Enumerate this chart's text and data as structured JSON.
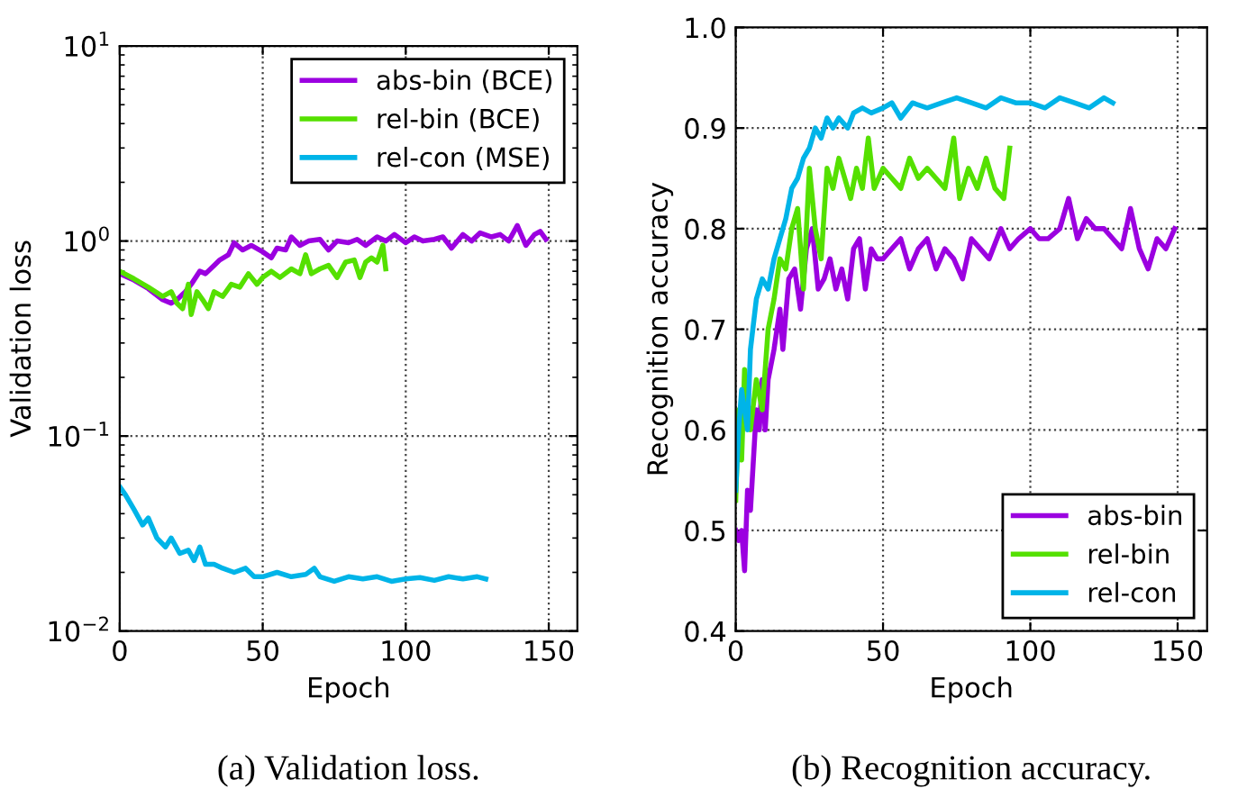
{
  "chart_data": [
    {
      "type": "line",
      "xlabel": "Epoch",
      "ylabel": "Validation loss",
      "log": "y",
      "xlim": [
        0,
        160
      ],
      "xticks": [
        0,
        50,
        100,
        150
      ],
      "ylim": [
        0.01,
        10
      ],
      "yticks": [
        {
          "value": 0.01,
          "label": "10$^{−2}$"
        },
        {
          "value": 0.1,
          "label": "10$^{−1}$"
        },
        {
          "value": 1,
          "label": "10$^{0}$"
        },
        {
          "value": 10,
          "label": "10$^{1}$"
        }
      ],
      "grid": true,
      "legend": "top right",
      "annotations": [
        "(a) Validation loss."
      ],
      "series": [
        {
          "name": "abs-bin (BCE)",
          "color": "#9b00e0",
          "x": [
            0,
            5,
            10,
            15,
            18,
            20,
            23,
            25,
            28,
            30,
            33,
            35,
            38,
            40,
            43,
            46,
            50,
            53,
            55,
            58,
            60,
            63,
            66,
            70,
            73,
            76,
            80,
            83,
            86,
            90,
            93,
            96,
            100,
            103,
            106,
            110,
            113,
            116,
            120,
            123,
            126,
            130,
            133,
            136,
            139,
            142,
            145,
            147,
            149
          ],
          "values": [
            0.68,
            0.63,
            0.57,
            0.5,
            0.48,
            0.5,
            0.55,
            0.6,
            0.7,
            0.68,
            0.75,
            0.8,
            0.85,
            0.98,
            0.9,
            0.95,
            0.88,
            0.82,
            0.92,
            0.9,
            1.05,
            0.95,
            1.0,
            1.02,
            0.9,
            1.0,
            0.98,
            1.02,
            0.95,
            1.05,
            1.0,
            1.08,
            0.98,
            1.05,
            1.0,
            1.02,
            1.05,
            0.92,
            1.08,
            1.0,
            1.1,
            1.05,
            1.08,
            1.0,
            1.2,
            0.95,
            1.08,
            1.12,
            1.02
          ]
        },
        {
          "name": "rel-bin (BCE)",
          "color": "#55e000",
          "x": [
            0,
            5,
            10,
            15,
            18,
            20,
            22,
            24,
            25,
            27,
            29,
            31,
            33,
            36,
            39,
            42,
            45,
            48,
            50,
            53,
            56,
            60,
            63,
            65,
            67,
            70,
            73,
            76,
            79,
            82,
            84,
            86,
            88,
            90,
            92,
            93
          ],
          "values": [
            0.7,
            0.64,
            0.58,
            0.52,
            0.55,
            0.48,
            0.45,
            0.6,
            0.42,
            0.55,
            0.5,
            0.45,
            0.55,
            0.52,
            0.6,
            0.58,
            0.68,
            0.6,
            0.65,
            0.7,
            0.65,
            0.72,
            0.68,
            0.85,
            0.68,
            0.72,
            0.75,
            0.65,
            0.78,
            0.8,
            0.65,
            0.78,
            0.82,
            0.78,
            0.95,
            0.72
          ]
        },
        {
          "name": "rel-con (MSE)",
          "color": "#00b4e8",
          "x": [
            0,
            2,
            5,
            8,
            10,
            13,
            16,
            18,
            21,
            24,
            26,
            28,
            30,
            33,
            36,
            40,
            44,
            47,
            50,
            55,
            60,
            65,
            68,
            70,
            75,
            80,
            85,
            90,
            95,
            100,
            105,
            110,
            115,
            120,
            125,
            128
          ],
          "values": [
            0.055,
            0.05,
            0.042,
            0.035,
            0.038,
            0.03,
            0.027,
            0.03,
            0.025,
            0.026,
            0.023,
            0.027,
            0.022,
            0.022,
            0.021,
            0.02,
            0.021,
            0.019,
            0.019,
            0.02,
            0.019,
            0.0195,
            0.021,
            0.019,
            0.018,
            0.019,
            0.0185,
            0.019,
            0.018,
            0.0185,
            0.0188,
            0.0182,
            0.019,
            0.0185,
            0.019,
            0.0185
          ]
        }
      ]
    },
    {
      "type": "line",
      "xlabel": "Epoch",
      "ylabel": "Recognition accuracy",
      "xlim": [
        0,
        160
      ],
      "xticks": [
        0,
        50,
        100,
        150
      ],
      "ylim": [
        0.4,
        1.0
      ],
      "yticks": [
        {
          "value": 0.4,
          "label": "0.4"
        },
        {
          "value": 0.5,
          "label": "0.5"
        },
        {
          "value": 0.6,
          "label": "0.6"
        },
        {
          "value": 0.7,
          "label": "0.7"
        },
        {
          "value": 0.8,
          "label": "0.8"
        },
        {
          "value": 0.9,
          "label": "0.9"
        },
        {
          "value": 1.0,
          "label": "1.0"
        }
      ],
      "grid": true,
      "legend": "bottom right",
      "annotations": [
        "(b) Recognition accuracy."
      ],
      "series": [
        {
          "name": "abs-bin",
          "color": "#9b00e0",
          "x": [
            0,
            1,
            2,
            3,
            4,
            5,
            7,
            8,
            9,
            10,
            11,
            13,
            15,
            16,
            18,
            20,
            22,
            24,
            26,
            28,
            30,
            32,
            34,
            36,
            38,
            40,
            42,
            44,
            46,
            48,
            50,
            53,
            56,
            59,
            62,
            65,
            68,
            71,
            74,
            77,
            80,
            83,
            86,
            90,
            93,
            96,
            100,
            103,
            106,
            110,
            113,
            116,
            119,
            122,
            125,
            128,
            131,
            134,
            137,
            140,
            143,
            146,
            149
          ],
          "values": [
            0.5,
            0.49,
            0.5,
            0.46,
            0.54,
            0.52,
            0.62,
            0.6,
            0.65,
            0.6,
            0.65,
            0.68,
            0.72,
            0.68,
            0.75,
            0.76,
            0.72,
            0.78,
            0.8,
            0.74,
            0.75,
            0.77,
            0.74,
            0.76,
            0.73,
            0.78,
            0.79,
            0.74,
            0.78,
            0.77,
            0.77,
            0.78,
            0.79,
            0.76,
            0.78,
            0.79,
            0.76,
            0.78,
            0.77,
            0.75,
            0.79,
            0.78,
            0.77,
            0.8,
            0.78,
            0.79,
            0.8,
            0.79,
            0.79,
            0.8,
            0.83,
            0.79,
            0.81,
            0.8,
            0.8,
            0.79,
            0.78,
            0.82,
            0.78,
            0.76,
            0.79,
            0.78,
            0.8
          ]
        },
        {
          "name": "rel-bin",
          "color": "#55e000",
          "x": [
            0,
            1,
            2,
            3,
            5,
            7,
            9,
            11,
            13,
            15,
            17,
            19,
            21,
            23,
            25,
            27,
            29,
            31,
            33,
            35,
            37,
            39,
            41,
            43,
            45,
            47,
            50,
            53,
            56,
            59,
            62,
            65,
            68,
            71,
            74,
            76,
            79,
            82,
            85,
            88,
            91,
            93
          ],
          "values": [
            0.53,
            0.62,
            0.57,
            0.66,
            0.6,
            0.65,
            0.62,
            0.7,
            0.73,
            0.77,
            0.76,
            0.8,
            0.82,
            0.74,
            0.86,
            0.8,
            0.77,
            0.86,
            0.84,
            0.87,
            0.85,
            0.83,
            0.86,
            0.84,
            0.89,
            0.84,
            0.86,
            0.85,
            0.84,
            0.87,
            0.85,
            0.86,
            0.85,
            0.84,
            0.89,
            0.83,
            0.86,
            0.84,
            0.87,
            0.84,
            0.83,
            0.88
          ]
        },
        {
          "name": "rel-con",
          "color": "#00b4e8",
          "x": [
            0,
            1,
            2,
            4,
            5,
            7,
            9,
            11,
            13,
            15,
            17,
            19,
            21,
            23,
            25,
            27,
            29,
            31,
            33,
            35,
            38,
            40,
            43,
            46,
            50,
            53,
            56,
            60,
            65,
            70,
            75,
            80,
            85,
            90,
            95,
            100,
            105,
            110,
            115,
            120,
            125,
            128
          ],
          "values": [
            0.54,
            0.6,
            0.64,
            0.6,
            0.68,
            0.73,
            0.75,
            0.74,
            0.77,
            0.79,
            0.81,
            0.84,
            0.85,
            0.87,
            0.88,
            0.9,
            0.89,
            0.91,
            0.9,
            0.91,
            0.9,
            0.915,
            0.92,
            0.915,
            0.92,
            0.925,
            0.91,
            0.925,
            0.92,
            0.925,
            0.93,
            0.925,
            0.92,
            0.93,
            0.925,
            0.925,
            0.92,
            0.93,
            0.925,
            0.92,
            0.93,
            0.925
          ]
        }
      ]
    }
  ]
}
